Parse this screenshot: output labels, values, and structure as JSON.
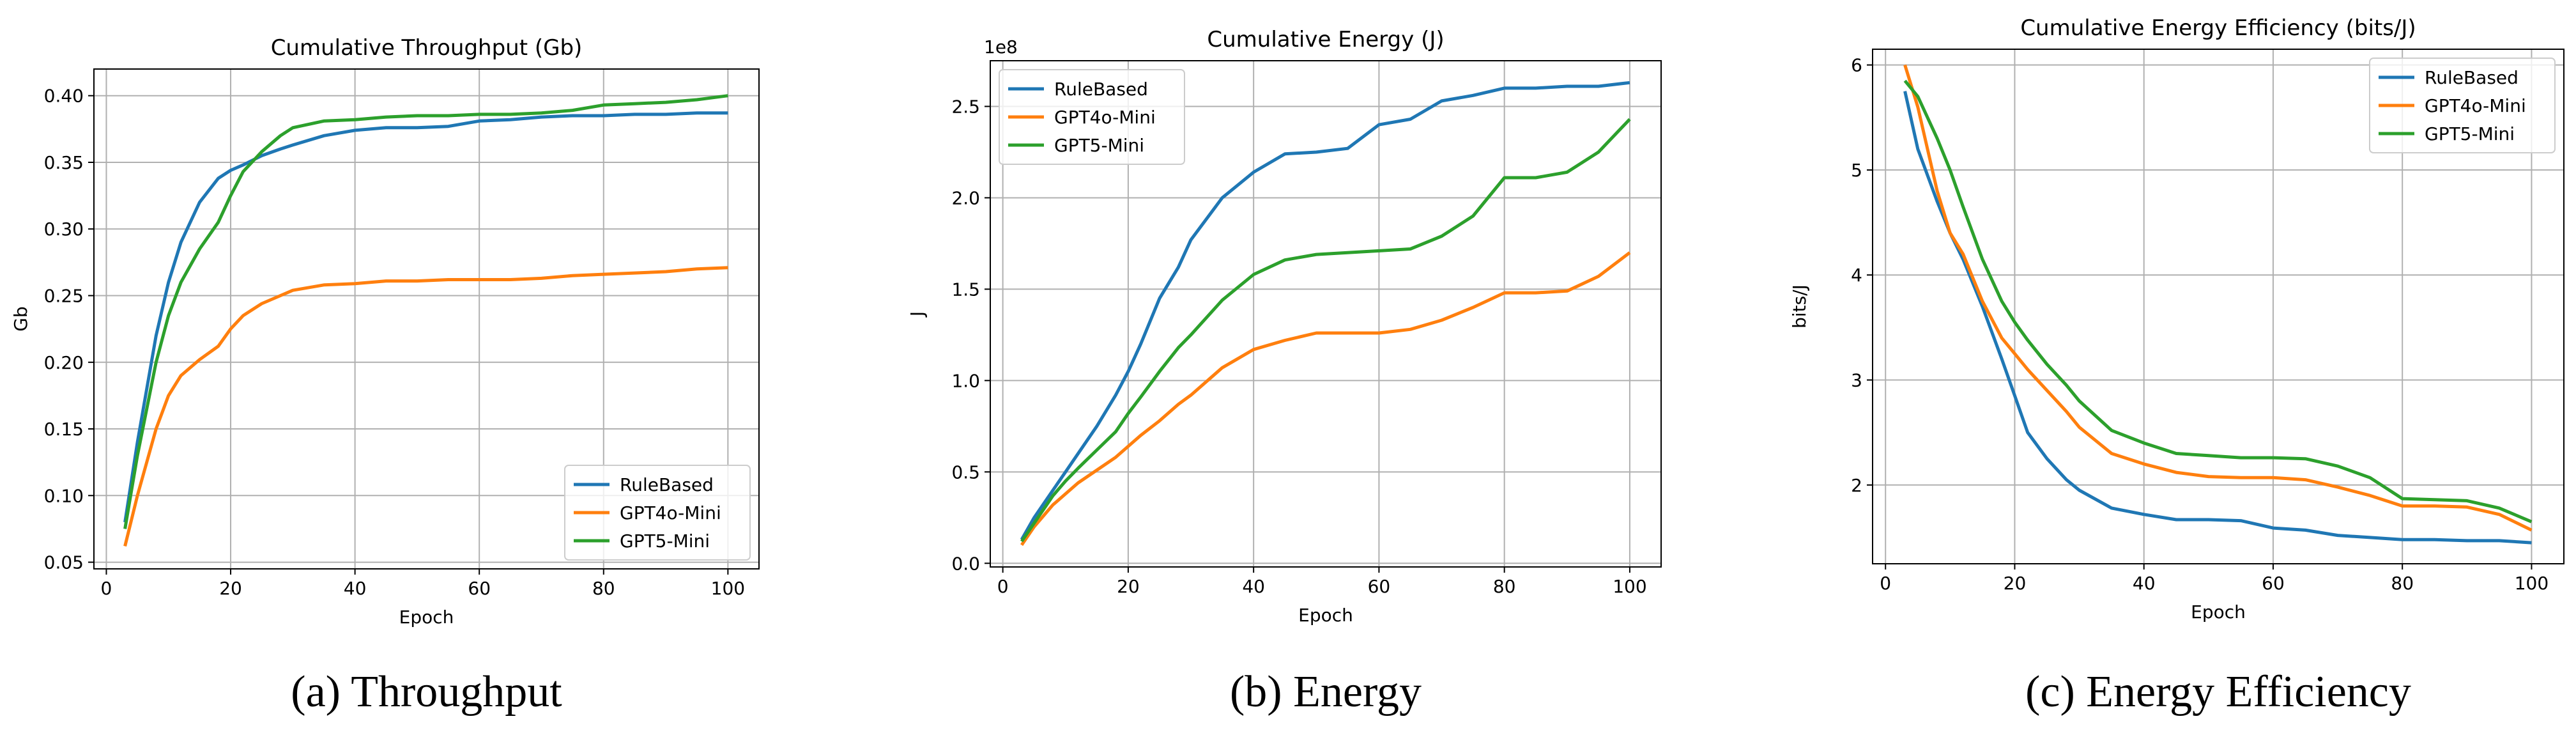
{
  "chart_data": [
    {
      "type": "line",
      "title": "Cumulative Throughput (Gb)",
      "caption": "(a) Throughput",
      "x_label": "Epoch",
      "y_label": "Gb",
      "x": [
        3,
        5,
        8,
        10,
        12,
        15,
        18,
        20,
        22,
        25,
        28,
        30,
        35,
        40,
        45,
        50,
        55,
        60,
        65,
        70,
        75,
        80,
        85,
        90,
        95,
        100
      ],
      "series": [
        {
          "name": "RuleBased",
          "color": "#1f77b4",
          "values": [
            0.08,
            0.14,
            0.22,
            0.26,
            0.29,
            0.32,
            0.338,
            0.344,
            0.348,
            0.355,
            0.36,
            0.363,
            0.37,
            0.374,
            0.376,
            0.376,
            0.377,
            0.381,
            0.382,
            0.384,
            0.385,
            0.385,
            0.386,
            0.386,
            0.387,
            0.387
          ]
        },
        {
          "name": "GPT4o-Mini",
          "color": "#ff7f0e",
          "values": [
            0.062,
            0.1,
            0.15,
            0.175,
            0.19,
            0.202,
            0.212,
            0.225,
            0.235,
            0.244,
            0.25,
            0.254,
            0.258,
            0.259,
            0.261,
            0.261,
            0.262,
            0.262,
            0.262,
            0.263,
            0.265,
            0.266,
            0.267,
            0.268,
            0.27,
            0.271
          ]
        },
        {
          "name": "GPT5-Mini",
          "color": "#2ca02c",
          "values": [
            0.075,
            0.13,
            0.2,
            0.235,
            0.26,
            0.285,
            0.305,
            0.325,
            0.343,
            0.358,
            0.37,
            0.376,
            0.381,
            0.382,
            0.384,
            0.385,
            0.385,
            0.386,
            0.386,
            0.387,
            0.389,
            0.393,
            0.394,
            0.395,
            0.397,
            0.4
          ]
        }
      ],
      "xlim": [
        -2,
        105
      ],
      "xticks": [
        0,
        20,
        40,
        60,
        80,
        100
      ],
      "ylim": [
        0.045,
        0.42
      ],
      "yticks": [
        0.05,
        {
          "value": 0.1,
          "label": "0.10"
        },
        0.15,
        {
          "value": 0.2,
          "label": "0.20"
        },
        0.25,
        {
          "value": 0.3,
          "label": "0.30"
        },
        0.35,
        {
          "value": 0.4,
          "label": "0.40"
        }
      ],
      "grid": true,
      "legend": "lower right"
    },
    {
      "type": "line",
      "title": "Cumulative Energy (J)",
      "caption": "(b) Energy",
      "x_label": "Epoch",
      "y_label": "J",
      "y_offset": "1e8",
      "x": [
        3,
        5,
        8,
        10,
        12,
        15,
        18,
        20,
        22,
        25,
        28,
        30,
        35,
        40,
        45,
        50,
        55,
        60,
        65,
        70,
        75,
        80,
        85,
        90,
        95,
        100
      ],
      "series": [
        {
          "name": "RuleBased",
          "color": "#1f77b4",
          "values": [
            0.13,
            0.25,
            0.4,
            0.5,
            0.6,
            0.75,
            0.92,
            1.05,
            1.2,
            1.45,
            1.62,
            1.77,
            2.0,
            2.14,
            2.24,
            2.25,
            2.27,
            2.4,
            2.43,
            2.53,
            2.56,
            2.6,
            2.6,
            2.61,
            2.61,
            2.63
          ]
        },
        {
          "name": "GPT4o-Mini",
          "color": "#ff7f0e",
          "values": [
            0.1,
            0.2,
            0.32,
            0.38,
            0.44,
            0.51,
            0.58,
            0.64,
            0.7,
            0.78,
            0.87,
            0.92,
            1.07,
            1.17,
            1.22,
            1.26,
            1.26,
            1.26,
            1.28,
            1.33,
            1.4,
            1.48,
            1.48,
            1.49,
            1.57,
            1.7
          ]
        },
        {
          "name": "GPT5-Mini",
          "color": "#2ca02c",
          "values": [
            0.12,
            0.22,
            0.37,
            0.45,
            0.52,
            0.62,
            0.72,
            0.82,
            0.91,
            1.05,
            1.18,
            1.25,
            1.44,
            1.58,
            1.66,
            1.69,
            1.7,
            1.71,
            1.72,
            1.79,
            1.9,
            2.11,
            2.11,
            2.14,
            2.25,
            2.43
          ]
        }
      ],
      "xlim": [
        -2,
        105
      ],
      "xticks": [
        0,
        20,
        40,
        60,
        80,
        100
      ],
      "ylim": [
        -0.02,
        2.75
      ],
      "yticks": [
        {
          "value": 0,
          "label": "0.0"
        },
        0.5,
        {
          "value": 1,
          "label": "1.0"
        },
        1.5,
        {
          "value": 2,
          "label": "2.0"
        },
        2.5
      ],
      "grid": true,
      "legend": "upper left"
    },
    {
      "type": "line",
      "title": "Cumulative Energy Efficiency (bits/J)",
      "caption": "(c) Energy Efficiency",
      "x_label": "Epoch",
      "y_label": "bits/J",
      "x": [
        3,
        5,
        8,
        10,
        12,
        15,
        18,
        20,
        22,
        25,
        28,
        30,
        35,
        40,
        45,
        50,
        55,
        60,
        65,
        70,
        75,
        80,
        85,
        90,
        95,
        100
      ],
      "series": [
        {
          "name": "RuleBased",
          "color": "#1f77b4",
          "values": [
            5.75,
            5.2,
            4.7,
            4.4,
            4.15,
            3.7,
            3.2,
            2.85,
            2.5,
            2.25,
            2.05,
            1.95,
            1.78,
            1.72,
            1.67,
            1.67,
            1.66,
            1.59,
            1.57,
            1.52,
            1.5,
            1.48,
            1.48,
            1.47,
            1.47,
            1.45
          ]
        },
        {
          "name": "GPT4o-Mini",
          "color": "#ff7f0e",
          "values": [
            6.0,
            5.6,
            4.8,
            4.4,
            4.2,
            3.75,
            3.4,
            3.25,
            3.1,
            2.9,
            2.7,
            2.55,
            2.3,
            2.2,
            2.12,
            2.08,
            2.07,
            2.07,
            2.05,
            1.98,
            1.9,
            1.8,
            1.8,
            1.79,
            1.72,
            1.57
          ]
        },
        {
          "name": "GPT5-Mini",
          "color": "#2ca02c",
          "values": [
            5.85,
            5.7,
            5.3,
            5.0,
            4.65,
            4.15,
            3.75,
            3.55,
            3.38,
            3.15,
            2.95,
            2.8,
            2.52,
            2.4,
            2.3,
            2.28,
            2.26,
            2.26,
            2.25,
            2.18,
            2.07,
            1.87,
            1.86,
            1.85,
            1.78,
            1.65
          ]
        }
      ],
      "xlim": [
        -2,
        105
      ],
      "xticks": [
        0,
        20,
        40,
        60,
        80,
        100
      ],
      "ylim": [
        1.25,
        6.15
      ],
      "yticks": [
        2,
        3,
        4,
        5,
        6
      ],
      "grid": true,
      "legend": "upper right"
    }
  ]
}
